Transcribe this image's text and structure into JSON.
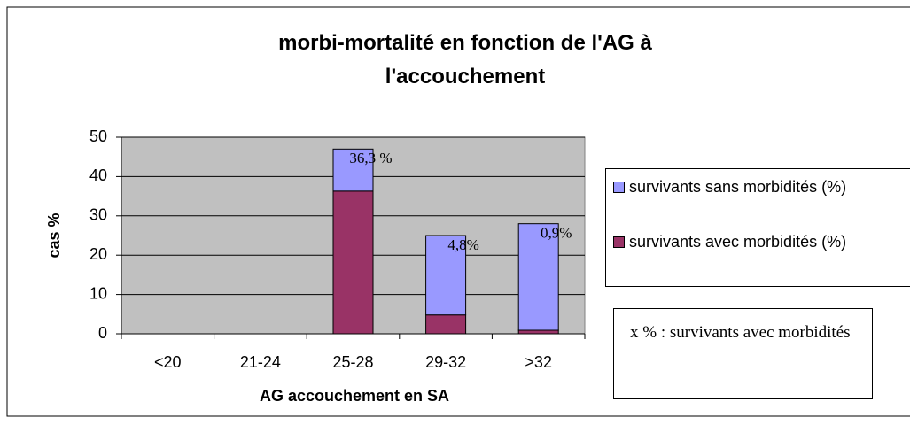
{
  "chart_data": {
    "type": "bar",
    "stacked": true,
    "title": "morbi-mortalité en fonction de l'AG à l'accouchement",
    "x_label": "AG accouchement en SA",
    "y_label": "cas %",
    "categories": [
      "<20",
      "21-24",
      "25-28",
      "29-32",
      ">32"
    ],
    "series": [
      {
        "name": "survivants avec morbidités (%)",
        "color": "#993366",
        "values": [
          0,
          0,
          36.3,
          4.8,
          0.9
        ],
        "value_labels": [
          null,
          null,
          "36,3 %",
          "4,8%",
          "0,9%"
        ]
      },
      {
        "name": "survivants sans morbidités (%)",
        "color": "#9999ff",
        "values": [
          0,
          0,
          10.7,
          20.2,
          27.1
        ]
      }
    ],
    "ylim": [
      0,
      50
    ],
    "yticks": [
      0,
      10,
      20,
      30,
      40,
      50
    ],
    "grid": true,
    "annotation": "x % : survivants avec morbidités"
  }
}
